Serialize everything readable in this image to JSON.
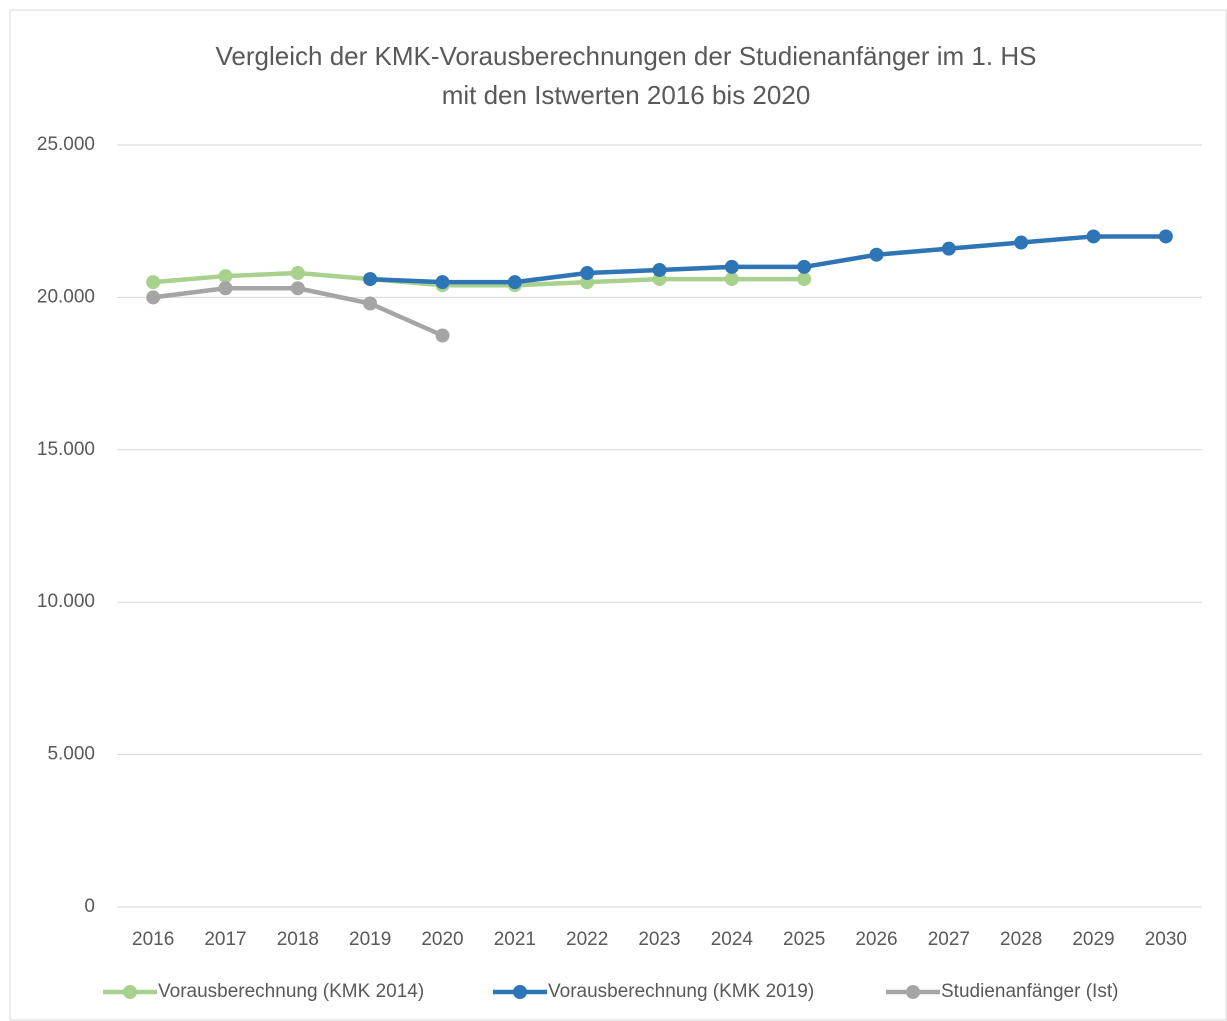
{
  "chart_data": {
    "type": "line",
    "title": [
      "Vergleich der KMK-Vorausberechnungen der Studienanfänger im 1. HS",
      "mit den Istwerten 2016 bis 2020"
    ],
    "categories": [
      "2016",
      "2017",
      "2018",
      "2019",
      "2020",
      "2021",
      "2022",
      "2023",
      "2024",
      "2025",
      "2026",
      "2027",
      "2028",
      "2029",
      "2030"
    ],
    "series": [
      {
        "name": "Vorausberechnung (KMK 2014)",
        "color": "#a9d18e",
        "values": [
          20500,
          20700,
          20800,
          20600,
          20400,
          20400,
          20500,
          20600,
          20600,
          20600,
          null,
          null,
          null,
          null,
          null
        ]
      },
      {
        "name": "Vorausberechnung (KMK 2019)",
        "color": "#2e75b6",
        "values": [
          null,
          null,
          null,
          20600,
          20500,
          20500,
          20800,
          20900,
          21000,
          21000,
          21400,
          21600,
          21800,
          22000,
          22000
        ]
      },
      {
        "name": "Studienanfänger (Ist)",
        "color": "#a5a5a5",
        "values": [
          20000,
          20300,
          20300,
          19800,
          18750,
          null,
          null,
          null,
          null,
          null,
          null,
          null,
          null,
          null,
          null
        ]
      }
    ],
    "ylim": [
      0,
      25000
    ],
    "yticks": [
      0,
      {
        "value": 5000,
        "label": "5.000"
      },
      {
        "value": 10000,
        "label": "10.000"
      },
      {
        "value": 15000,
        "label": "15.000"
      },
      {
        "value": 20000,
        "label": "20.000"
      },
      {
        "value": 25000,
        "label": "25.000"
      }
    ],
    "grid": true,
    "legend": "bottom"
  }
}
